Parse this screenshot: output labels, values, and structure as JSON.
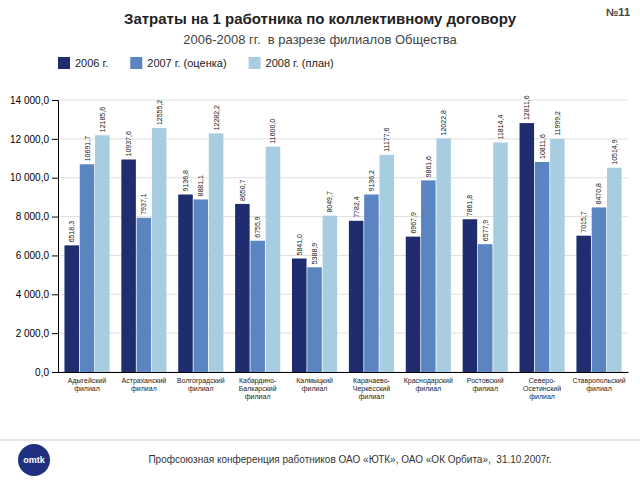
{
  "chart_data": {
    "type": "bar",
    "title": "Затраты на 1 работника по коллективному договору",
    "subtitle": "2006-2008 гг.  в разрезе филиалов Общества",
    "annotations": [
      "№11",
      "Профсоюзная конференция работников ОАО «ЮТК», ОАО «ОК Орбита»,  31.10.2007г.",
      "omtk"
    ],
    "categories": [
      "Адыгейский\nфилиал",
      "Астраханский\nфилиал",
      "Волгоградский\nфилиал",
      "Кабардино-\nБалкарский\nфилиал",
      "Калмыцкий\nфилиал",
      "Карачаево-\nЧеркесский\nфилиал",
      "Краснодарский\nфилиал",
      "Ростовский\nфилиал",
      "Северо-\nОсетинский\nфилиал",
      "Ставропольский\nфилиал"
    ],
    "series": [
      {
        "name": "2006 г.",
        "color": "#1f2d6e",
        "values": [
          6518.3,
          10937.6,
          9136.8,
          8650.7,
          5841.0,
          7782.4,
          6967.9,
          7861.8,
          12811.6,
          7015.7
        ],
        "value_labels": [
          "6518,3",
          "10937,6",
          "9136,8",
          "8650,7",
          "5841,0",
          "7782,4",
          "6967,9",
          "7861,8",
          "12811,6",
          "7015,7"
        ]
      },
      {
        "name": "2007 г. (оценка)",
        "color": "#5b85c0",
        "values": [
          10691.7,
          7937.1,
          8881.1,
          6755.9,
          5388.9,
          9136.2,
          9861.6,
          6577.9,
          10811.6,
          8470.8
        ],
        "value_labels": [
          "10691,7",
          "7937,1",
          "8881,1",
          "6755,9",
          "5388,9",
          "9136,2",
          "9861,6",
          "6577,9",
          "10811,6",
          "8470,8"
        ]
      },
      {
        "name": "2008 г. (план)",
        "color": "#a8cce0",
        "values": [
          12185.6,
          12555.2,
          12282.2,
          11600.0,
          8049.7,
          11177.6,
          12022.8,
          11814.4,
          11999.2,
          10514.9
        ],
        "value_labels": [
          "12185,6",
          "12555,2",
          "12282,2",
          "11600,0",
          "8049,7",
          "11177,6",
          "12022,8",
          "11814,4",
          "11999,2",
          "10514,9"
        ]
      }
    ],
    "ylim": [
      0,
      14000
    ],
    "yticks": [
      {
        "value": 0,
        "label": "0,0"
      },
      {
        "value": 2000,
        "label": "2 000,0"
      },
      {
        "value": 4000,
        "label": "4 000,0"
      },
      {
        "value": 6000,
        "label": "6 000,0"
      },
      {
        "value": 8000,
        "label": "8 000,0"
      },
      {
        "value": 10000,
        "label": "10 000,0"
      },
      {
        "value": 12000,
        "label": "12 000,0"
      },
      {
        "value": 14000,
        "label": "14 000,0"
      }
    ],
    "grid": true,
    "legend": "top",
    "data_labels": true
  }
}
